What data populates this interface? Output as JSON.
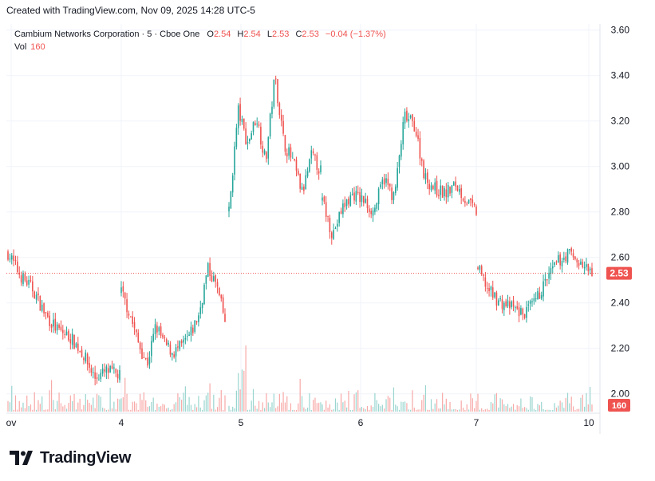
{
  "header": {
    "created_with": "Created with TradingView.com, Nov 09, 2025 14:28 UTC-5"
  },
  "legend": {
    "symbol": "Cambium Networks Corporation · 5 · Cboe One",
    "o_label": "O",
    "o_value": "2.54",
    "h_label": "H",
    "h_value": "2.54",
    "l_label": "L",
    "l_value": "2.53",
    "c_label": "C",
    "c_value": "2.53",
    "change": "−0.04 (−1.37%)",
    "vol_label": "Vol",
    "vol_value": "160"
  },
  "footer": {
    "brand": "TradingView",
    "logo_icon": "tradingview-logo-icon"
  },
  "colors": {
    "up": "#26a69a",
    "down": "#ef5350",
    "vol_up": "#9ad5cf",
    "vol_down": "#f7a9a7",
    "grid": "#f0f3fa",
    "axis_text": "#131722"
  },
  "chart_data": {
    "type": "candlestick",
    "y_ticks": [
      "3.60",
      "3.40",
      "3.20",
      "3.00",
      "2.80",
      "2.60",
      "2.40",
      "2.20",
      "2.00"
    ],
    "y_range": [
      1.935,
      3.625
    ],
    "x_ticks": [
      "ov",
      "4",
      "5",
      "6",
      "7",
      "10"
    ],
    "last_price": "2.53",
    "last_volume": "160",
    "sessions": [
      {
        "label": "Nov 3 (ov)",
        "path": [
          2.62,
          2.52,
          2.46,
          2.35,
          2.28,
          2.25,
          2.18,
          2.07,
          2.1,
          2.08
        ]
      },
      {
        "label": "Nov 4",
        "path": [
          2.45,
          2.35,
          2.22,
          2.13,
          2.3,
          2.22,
          2.18,
          2.21,
          2.26,
          2.35,
          2.55,
          2.48,
          2.32
        ]
      },
      {
        "label": "Nov 5",
        "path": [
          2.8,
          3.25,
          3.1,
          3.22,
          3.02,
          3.4,
          3.1,
          3.02,
          2.88,
          3.05,
          2.98
        ]
      },
      {
        "label": "Nov 6",
        "path": [
          2.85,
          2.7,
          2.82,
          2.88,
          2.85,
          2.8,
          2.95,
          2.86,
          3.22,
          3.18,
          2.95,
          2.9,
          2.88,
          2.92,
          2.85,
          2.8
        ]
      },
      {
        "label": "Nov 7",
        "path": [
          2.55,
          2.45,
          2.4,
          2.38,
          2.35,
          2.4,
          2.5,
          2.58,
          2.62,
          2.57,
          2.53
        ]
      }
    ]
  }
}
